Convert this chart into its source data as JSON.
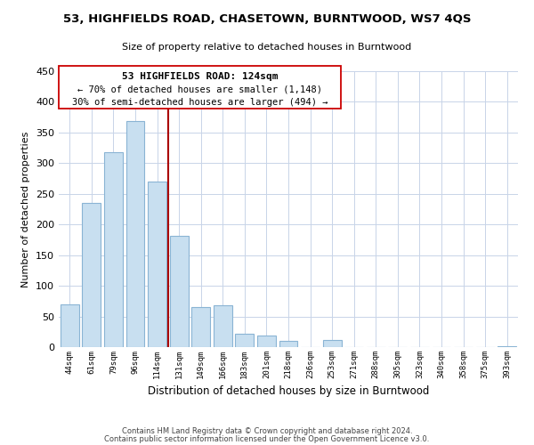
{
  "title": "53, HIGHFIELDS ROAD, CHASETOWN, BURNTWOOD, WS7 4QS",
  "subtitle": "Size of property relative to detached houses in Burntwood",
  "xlabel": "Distribution of detached houses by size in Burntwood",
  "ylabel": "Number of detached properties",
  "bar_color": "#c8dff0",
  "bar_edge_color": "#8ab4d4",
  "categories": [
    "44sqm",
    "61sqm",
    "79sqm",
    "96sqm",
    "114sqm",
    "131sqm",
    "149sqm",
    "166sqm",
    "183sqm",
    "201sqm",
    "218sqm",
    "236sqm",
    "253sqm",
    "271sqm",
    "288sqm",
    "305sqm",
    "323sqm",
    "340sqm",
    "358sqm",
    "375sqm",
    "393sqm"
  ],
  "values": [
    70,
    235,
    318,
    368,
    270,
    182,
    65,
    68,
    22,
    19,
    10,
    0,
    12,
    0,
    0,
    0,
    0,
    0,
    0,
    0,
    2
  ],
  "vline_index": 4.5,
  "vline_color": "#aa0000",
  "ann_line1": "53 HIGHFIELDS ROAD: 124sqm",
  "ann_line2": "← 70% of detached houses are smaller (1,148)",
  "ann_line3": "30% of semi-detached houses are larger (494) →",
  "ylim": [
    0,
    450
  ],
  "yticks": [
    0,
    50,
    100,
    150,
    200,
    250,
    300,
    350,
    400,
    450
  ],
  "footnote_line1": "Contains HM Land Registry data © Crown copyright and database right 2024.",
  "footnote_line2": "Contains public sector information licensed under the Open Government Licence v3.0.",
  "background_color": "#ffffff",
  "grid_color": "#c8d4e8"
}
